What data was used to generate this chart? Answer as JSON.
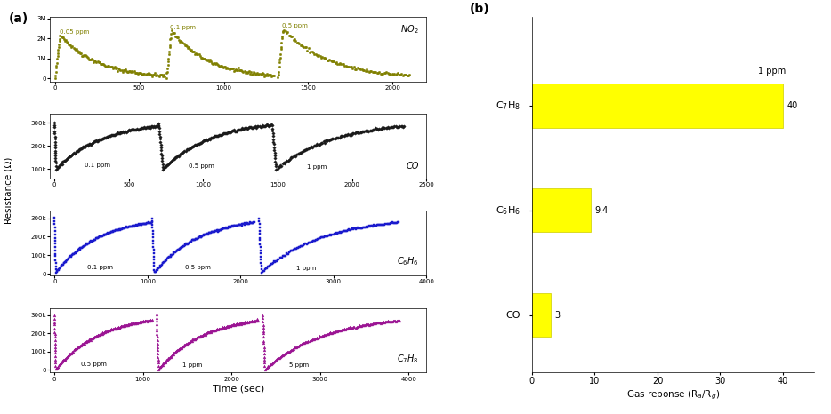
{
  "panel_a_label": "(a)",
  "panel_b_label": "(b)",
  "subplot_colors": [
    "#808000",
    "#1a1a1a",
    "#1a1acd",
    "#9b1493"
  ],
  "no2_concentrations": [
    "0.05 ppm",
    "0.1 ppm",
    "0.5 ppm"
  ],
  "co_concentrations": [
    "0.1 ppm",
    "0.5 ppm",
    "1 ppm"
  ],
  "c6h6_concentrations": [
    "0.1 ppm",
    "0.5 ppm",
    "1 ppm"
  ],
  "c7h8_concentrations": [
    "0.5 ppm",
    "1 ppm",
    "5 ppm"
  ],
  "bar_labels_latex": [
    "$C_7H_8$",
    "$C_6H_6$",
    "CO"
  ],
  "bar_values": [
    40,
    9.4,
    3
  ],
  "bar_color": "#ffff00",
  "bar_xlabel": "Gas reponse (R$_a$/R$_g$)",
  "bar_annotation": "1 ppm",
  "xlim_bar": [
    0,
    45
  ],
  "xticks_bar": [
    0,
    10,
    20,
    30,
    40
  ],
  "ylabel_left": "Resistance (Ω)",
  "xlabel_bottom": "Time (sec)"
}
